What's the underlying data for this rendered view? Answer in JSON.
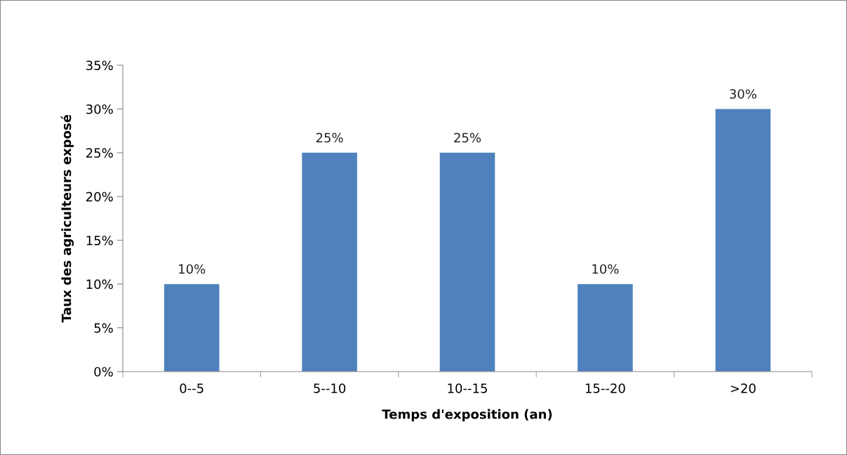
{
  "chart_data": {
    "type": "bar",
    "xlabel": "Temps d'exposition (an)",
    "ylabel": "Taux des agriculteurs exposé",
    "categories": [
      "0--5",
      "5--10",
      "10--15",
      "15--20",
      ">20"
    ],
    "values": [
      10,
      25,
      25,
      10,
      30
    ],
    "color": "#4f81bd",
    "value_labels": [
      "10%",
      "25%",
      "25%",
      "10%",
      "30%"
    ],
    "ylim": [
      0,
      35
    ],
    "yticks": [
      {
        "value": 0,
        "label": "0%"
      },
      {
        "value": 5,
        "label": "5%"
      },
      {
        "value": 10,
        "label": "10%"
      },
      {
        "value": 15,
        "label": "15%"
      },
      {
        "value": 20,
        "label": "20%"
      },
      {
        "value": 25,
        "label": "25%"
      },
      {
        "value": 30,
        "label": "30%"
      },
      {
        "value": 35,
        "label": "35%"
      }
    ],
    "grid": false,
    "legend": false
  }
}
